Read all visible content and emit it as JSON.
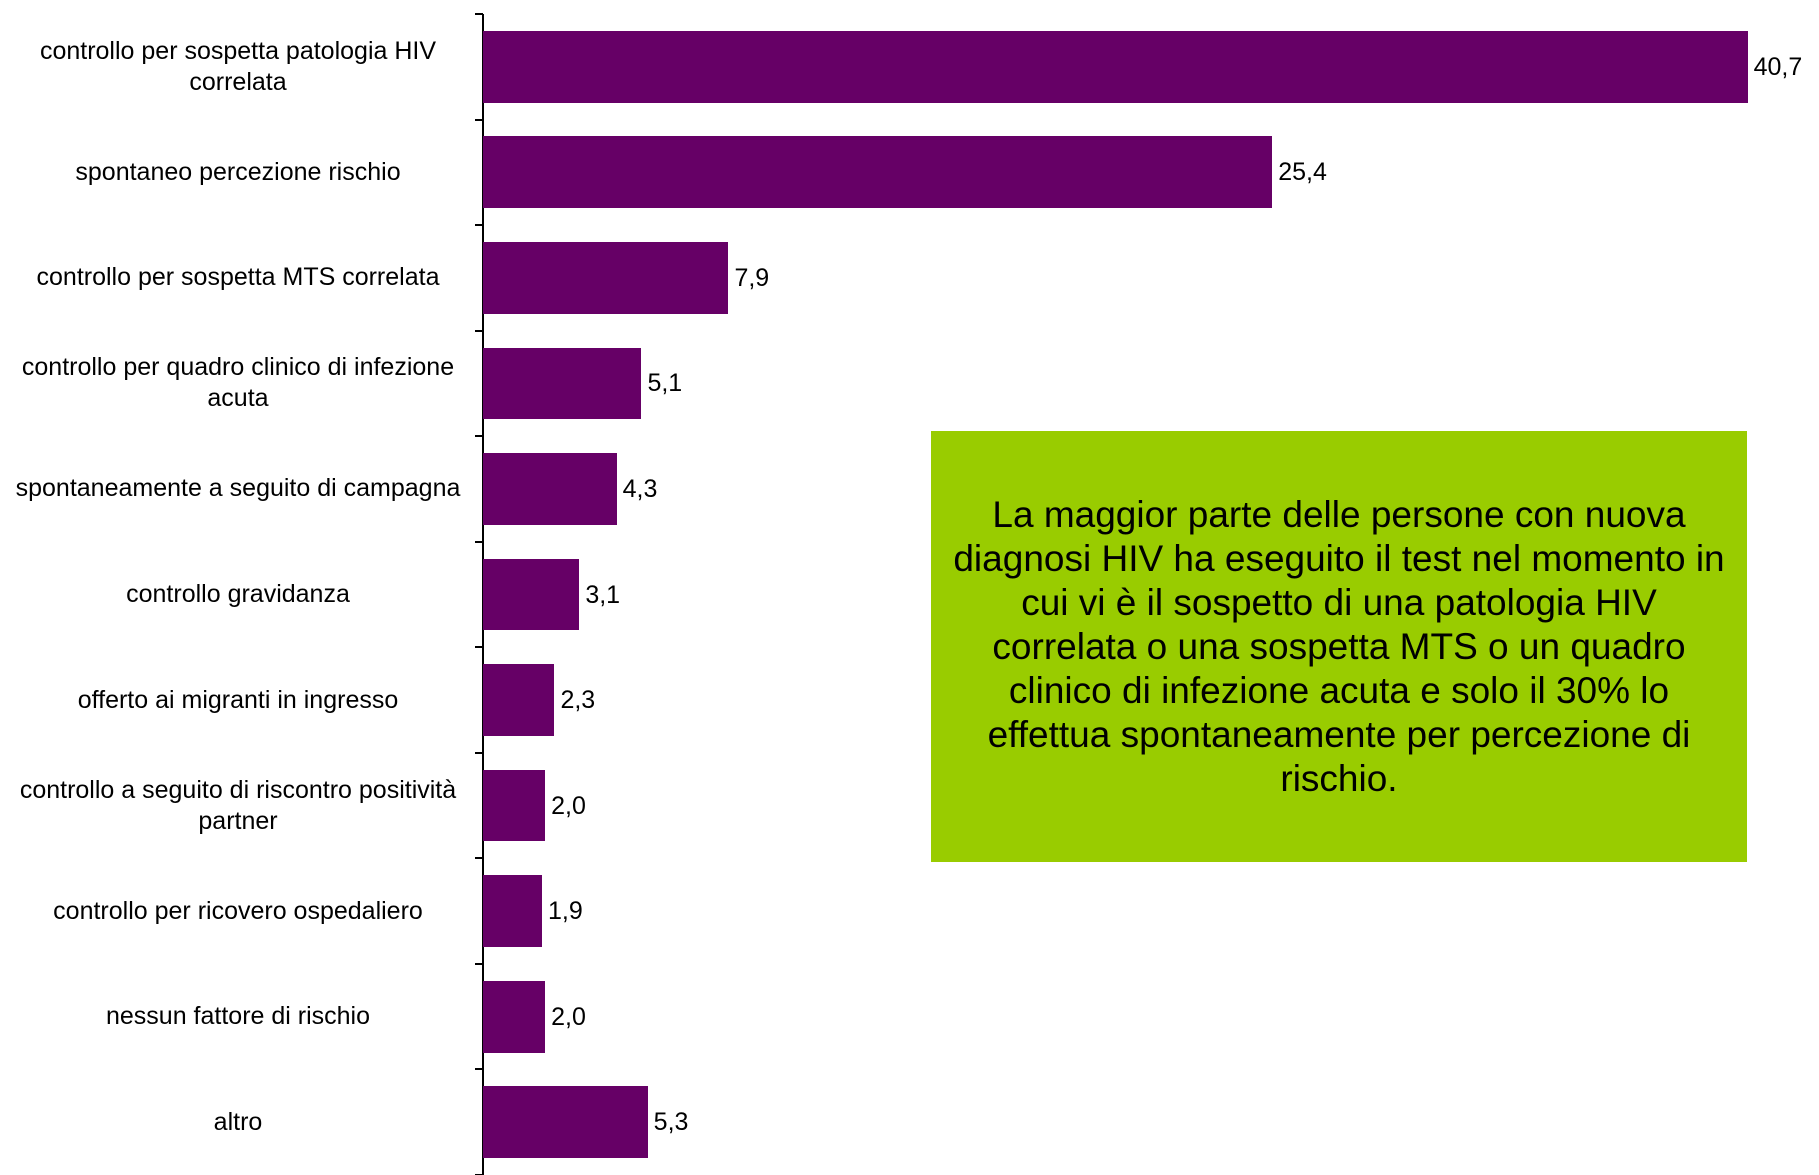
{
  "chart_data": {
    "type": "bar",
    "orientation": "horizontal",
    "categories": [
      "controllo per sospetta patologia HIV correlata",
      "spontaneo percezione rischio",
      "controllo per sospetta MTS correlata",
      "controllo per quadro clinico di infezione acuta",
      "spontaneamente a seguito di campagna",
      "controllo gravidanza",
      "offerto ai migranti in ingresso",
      "controllo a seguito di riscontro positività partner",
      "controllo per ricovero ospedaliero",
      "nessun fattore di rischio",
      "altro"
    ],
    "values": [
      40.7,
      25.4,
      7.9,
      5.1,
      4.3,
      3.1,
      2.3,
      2.0,
      1.9,
      2.0,
      5.3
    ],
    "value_labels": [
      "40,7",
      "25,4",
      "7,9",
      "5,1",
      "4,3",
      "3,1",
      "2,3",
      "2,0",
      "1,9",
      "2,0",
      "5,3"
    ],
    "color": "#660066",
    "xlim": [
      0,
      42
    ],
    "annotation": "La maggior parte delle persone con nuova diagnosi HIV ha eseguito il test nel momento in cui vi è il sospetto di una patologia HIV correlata o una sospetta MTS o un quadro clinico di infezione acuta e solo il 30% lo effettua spontaneamente per percezione di rischio.",
    "annotation_color": "#99cc00"
  }
}
